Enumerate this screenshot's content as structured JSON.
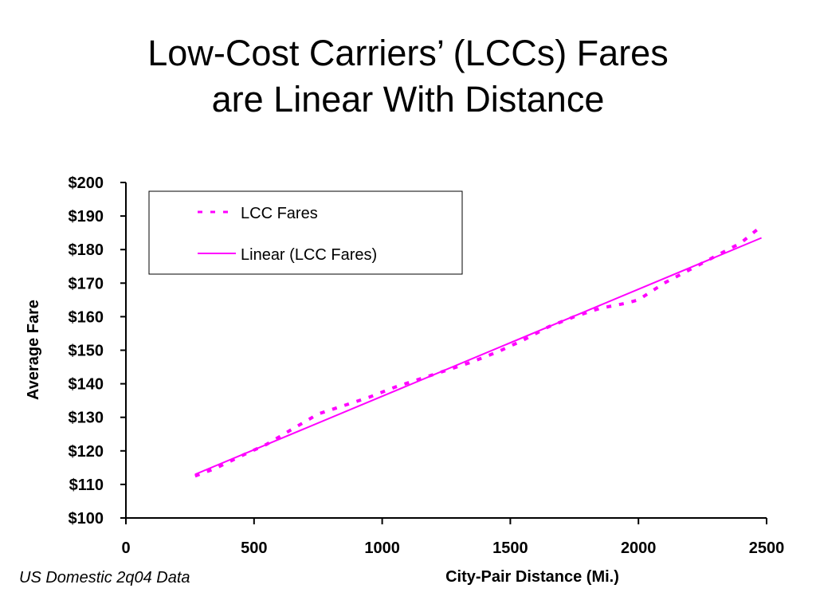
{
  "page": {
    "title_line1": "Low-Cost Carriers’ (LCCs) Fares",
    "title_line2": "are Linear With Distance",
    "footnote": "US Domestic 2q04 Data"
  },
  "chart_data": {
    "type": "line",
    "xlabel": "City-Pair Distance (Mi.)",
    "ylabel": "Average Fare",
    "xlim": [
      0,
      2500
    ],
    "ylim": [
      100,
      200
    ],
    "x_ticks": [
      0,
      500,
      1000,
      1500,
      2000,
      2500
    ],
    "x_tick_labels": [
      "0",
      "500",
      "1000",
      "1500",
      "2000",
      "2500"
    ],
    "y_ticks": [
      100,
      110,
      120,
      130,
      140,
      150,
      160,
      170,
      180,
      190,
      200
    ],
    "y_tick_labels": [
      "$100",
      "$110",
      "$120",
      "$130",
      "$140",
      "$150",
      "$160",
      "$170",
      "$180",
      "$190",
      "$200"
    ],
    "grid": false,
    "legend_position": "top-left",
    "series": [
      {
        "name": "LCC Fares",
        "style": "dotted",
        "color": "#ff00ff",
        "x": [
          270,
          350,
          450,
          550,
          650,
          750,
          850,
          950,
          1050,
          1150,
          1250,
          1350,
          1450,
          1550,
          1650,
          1750,
          1850,
          1950,
          2000,
          2100,
          2200,
          2300,
          2400,
          2480
        ],
        "y": [
          112.5,
          114.8,
          118.5,
          122,
          126.5,
          131,
          133.5,
          136,
          139,
          141.5,
          144,
          146.5,
          149.5,
          153,
          157,
          160,
          162.5,
          164,
          165,
          170,
          174,
          178,
          182,
          187
        ]
      },
      {
        "name": "Linear (LCC Fares)",
        "style": "solid",
        "color": "#ff00ff",
        "x": [
          270,
          2480
        ],
        "y": [
          113,
          183.5
        ]
      }
    ]
  }
}
